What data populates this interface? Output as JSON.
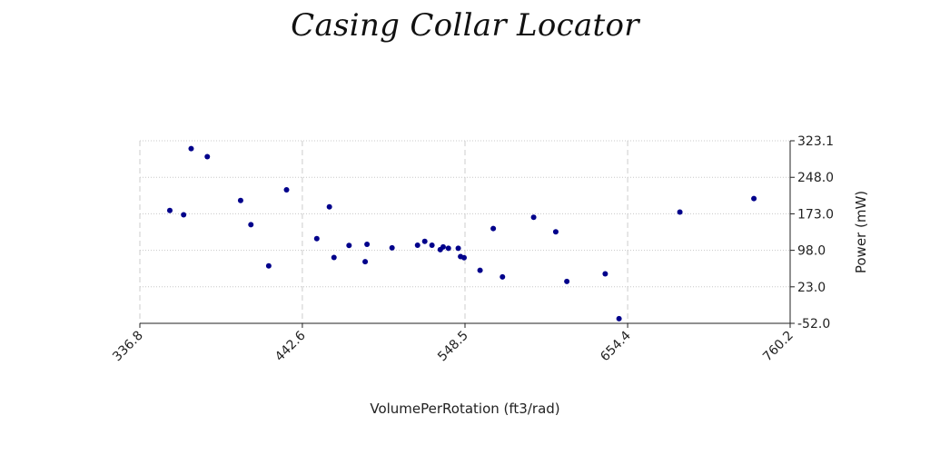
{
  "chart_data": {
    "type": "scatter",
    "title": "Casing Collar Locator",
    "xlabel": "VolumePerRotation (ft3/rad)",
    "ylabel": "Power (mW)",
    "xlim": [
      336.8,
      760.2
    ],
    "ylim": [
      -52.0,
      323.1
    ],
    "x_ticks": [
      "336.8",
      "442.6",
      "548.5",
      "654.4",
      "760.2"
    ],
    "y_ticks": [
      "-52.0",
      "23.0",
      "98.0",
      "173.0",
      "248.0",
      "323.1"
    ],
    "y_axis_side": "right",
    "grid": true,
    "marker_color": "#00008b",
    "points": [
      {
        "x": 356.3,
        "y": 179.8
      },
      {
        "x": 365.3,
        "y": 171.1
      },
      {
        "x": 370.2,
        "y": 307.0
      },
      {
        "x": 380.7,
        "y": 290.4
      },
      {
        "x": 402.4,
        "y": 200.5
      },
      {
        "x": 409.1,
        "y": 150.8
      },
      {
        "x": 420.7,
        "y": 66.0
      },
      {
        "x": 432.3,
        "y": 222.3
      },
      {
        "x": 452.0,
        "y": 122.0
      },
      {
        "x": 460.2,
        "y": 187.4
      },
      {
        "x": 463.2,
        "y": 83.3
      },
      {
        "x": 473.0,
        "y": 108.1
      },
      {
        "x": 483.5,
        "y": 74.7
      },
      {
        "x": 484.7,
        "y": 110.4
      },
      {
        "x": 501.0,
        "y": 103.2
      },
      {
        "x": 517.6,
        "y": 108.5
      },
      {
        "x": 522.3,
        "y": 116.4
      },
      {
        "x": 527.0,
        "y": 108.5
      },
      {
        "x": 532.4,
        "y": 99.4
      },
      {
        "x": 534.3,
        "y": 105.1
      },
      {
        "x": 537.7,
        "y": 102.1
      },
      {
        "x": 544.1,
        "y": 102.1
      },
      {
        "x": 545.6,
        "y": 85.2
      },
      {
        "x": 547.9,
        "y": 82.9
      },
      {
        "x": 558.3,
        "y": 57.0
      },
      {
        "x": 566.9,
        "y": 142.8
      },
      {
        "x": 572.9,
        "y": 43.3
      },
      {
        "x": 593.2,
        "y": 165.8
      },
      {
        "x": 607.6,
        "y": 136.1
      },
      {
        "x": 614.8,
        "y": 34.0
      },
      {
        "x": 639.8,
        "y": 49.8
      },
      {
        "x": 648.8,
        "y": -42.5
      },
      {
        "x": 688.4,
        "y": 176.7
      },
      {
        "x": 736.6,
        "y": 204.3
      }
    ]
  }
}
